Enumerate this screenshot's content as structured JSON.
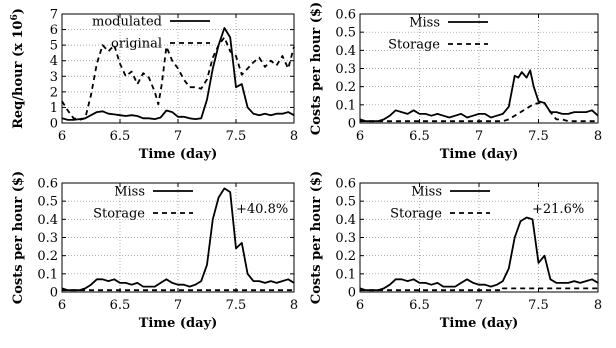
{
  "chart_data": [
    {
      "type": "line",
      "xlabel": "Time (day)",
      "ylabel": "Req/hour (x 10^6)",
      "ylabel_main": "Req/hour (x 10",
      "ylabel_exp": "6",
      "ylabel_close": ")",
      "xlim": [
        6,
        8
      ],
      "ylim": [
        0,
        7
      ],
      "xticks": [
        "6",
        "6.5",
        "7",
        "7.5",
        "8"
      ],
      "yticks": [
        "0",
        "1",
        "2",
        "3",
        "4",
        "5",
        "6",
        "7"
      ],
      "ytick_values": [
        0,
        1,
        2,
        3,
        4,
        5,
        6,
        7
      ],
      "grid": true,
      "legend": "top-right",
      "annotation": "",
      "series": [
        {
          "name": "modulated",
          "style": "solid",
          "x": [
            6.0,
            6.05,
            6.1,
            6.15,
            6.2,
            6.25,
            6.3,
            6.35,
            6.4,
            6.45,
            6.5,
            6.55,
            6.6,
            6.65,
            6.7,
            6.75,
            6.8,
            6.85,
            6.9,
            6.95,
            7.0,
            7.05,
            7.1,
            7.15,
            7.2,
            7.25,
            7.3,
            7.35,
            7.4,
            7.45,
            7.5,
            7.55,
            7.6,
            7.65,
            7.7,
            7.75,
            7.8,
            7.85,
            7.9,
            7.95,
            8.0
          ],
          "values": [
            0.3,
            0.2,
            0.2,
            0.25,
            0.3,
            0.5,
            0.7,
            0.75,
            0.6,
            0.55,
            0.5,
            0.45,
            0.5,
            0.45,
            0.3,
            0.3,
            0.25,
            0.35,
            0.8,
            0.7,
            0.4,
            0.4,
            0.3,
            0.25,
            0.3,
            1.5,
            3.5,
            5.0,
            6.1,
            5.5,
            2.3,
            2.5,
            1.0,
            0.6,
            0.5,
            0.6,
            0.5,
            0.6,
            0.6,
            0.7,
            0.5
          ]
        },
        {
          "name": "original",
          "style": "dashed",
          "x": [
            6.0,
            6.05,
            6.1,
            6.15,
            6.2,
            6.25,
            6.3,
            6.35,
            6.4,
            6.45,
            6.5,
            6.55,
            6.6,
            6.65,
            6.7,
            6.75,
            6.8,
            6.83,
            6.86,
            6.9,
            6.95,
            7.0,
            7.05,
            7.1,
            7.15,
            7.2,
            7.25,
            7.3,
            7.35,
            7.4,
            7.45,
            7.5,
            7.55,
            7.6,
            7.65,
            7.7,
            7.75,
            7.8,
            7.85,
            7.9,
            7.95,
            8.0
          ],
          "values": [
            1.4,
            0.8,
            0.3,
            0.2,
            0.3,
            1.8,
            3.8,
            5.0,
            4.6,
            5.0,
            3.8,
            3.0,
            3.3,
            2.5,
            3.2,
            2.9,
            2.0,
            1.2,
            2.5,
            4.9,
            4.0,
            3.5,
            2.8,
            2.3,
            2.3,
            2.2,
            2.8,
            4.2,
            5.0,
            5.5,
            4.6,
            4.3,
            3.1,
            3.5,
            3.9,
            4.2,
            3.6,
            4.0,
            3.7,
            4.3,
            3.5,
            4.9
          ]
        }
      ]
    },
    {
      "type": "line",
      "xlabel": "Time (day)",
      "ylabel": "Costs per hour ($)",
      "xlim": [
        6,
        8
      ],
      "ylim": [
        0,
        0.6
      ],
      "xticks": [
        "6",
        "6.5",
        "7",
        "7.5",
        "8"
      ],
      "yticks": [
        "0",
        "0.1",
        "0.2",
        "0.3",
        "0.4",
        "0.5",
        "0.6"
      ],
      "ytick_values": [
        0,
        0.1,
        0.2,
        0.3,
        0.4,
        0.5,
        0.6
      ],
      "grid": true,
      "legend": "top-left",
      "annotation": "",
      "series": [
        {
          "name": "Miss",
          "style": "solid",
          "x": [
            6.0,
            6.05,
            6.1,
            6.15,
            6.2,
            6.25,
            6.3,
            6.35,
            6.4,
            6.45,
            6.5,
            6.55,
            6.6,
            6.65,
            6.7,
            6.75,
            6.8,
            6.85,
            6.9,
            6.95,
            7.0,
            7.05,
            7.1,
            7.15,
            7.2,
            7.25,
            7.3,
            7.33,
            7.36,
            7.4,
            7.43,
            7.46,
            7.5,
            7.55,
            7.6,
            7.65,
            7.7,
            7.75,
            7.8,
            7.85,
            7.9,
            7.95,
            8.0
          ],
          "values": [
            0.02,
            0.01,
            0.01,
            0.01,
            0.02,
            0.04,
            0.07,
            0.06,
            0.05,
            0.07,
            0.05,
            0.05,
            0.04,
            0.05,
            0.04,
            0.03,
            0.04,
            0.05,
            0.03,
            0.04,
            0.05,
            0.05,
            0.03,
            0.04,
            0.05,
            0.09,
            0.26,
            0.25,
            0.28,
            0.25,
            0.29,
            0.2,
            0.12,
            0.11,
            0.06,
            0.06,
            0.05,
            0.05,
            0.06,
            0.06,
            0.06,
            0.07,
            0.04
          ]
        },
        {
          "name": "Storage",
          "style": "dashed",
          "x": [
            6.0,
            6.05,
            6.1,
            6.15,
            6.2,
            6.25,
            6.3,
            6.35,
            6.4,
            6.45,
            6.5,
            6.55,
            6.6,
            6.65,
            6.7,
            6.75,
            6.8,
            6.85,
            6.9,
            6.95,
            7.0,
            7.05,
            7.1,
            7.15,
            7.2,
            7.25,
            7.3,
            7.35,
            7.4,
            7.45,
            7.5,
            7.55,
            7.6,
            7.65,
            7.7,
            7.75,
            7.8,
            7.85,
            7.9,
            7.95,
            8.0
          ],
          "values": [
            0.01,
            0.01,
            0.01,
            0.01,
            0.01,
            0.01,
            0.01,
            0.01,
            0.01,
            0.01,
            0.01,
            0.01,
            0.01,
            0.01,
            0.01,
            0.01,
            0.01,
            0.01,
            0.01,
            0.01,
            0.01,
            0.01,
            0.01,
            0.01,
            0.01,
            0.02,
            0.04,
            0.06,
            0.08,
            0.1,
            0.11,
            0.11,
            0.06,
            0.02,
            0.02,
            0.01,
            0.01,
            0.01,
            0.01,
            0.01,
            0.01
          ]
        }
      ]
    },
    {
      "type": "line",
      "xlabel": "Time (day)",
      "ylabel": "Costs per hour ($)",
      "xlim": [
        6,
        8
      ],
      "ylim": [
        0,
        0.6
      ],
      "xticks": [
        "6",
        "6.5",
        "7",
        "7.5",
        "8"
      ],
      "yticks": [
        "0",
        "0.1",
        "0.2",
        "0.3",
        "0.4",
        "0.5",
        "0.6"
      ],
      "ytick_values": [
        0,
        0.1,
        0.2,
        0.3,
        0.4,
        0.5,
        0.6
      ],
      "grid": true,
      "legend": "top-left",
      "annotation": "+40.8%",
      "series": [
        {
          "name": "Miss",
          "style": "solid",
          "x": [
            6.0,
            6.05,
            6.1,
            6.15,
            6.2,
            6.25,
            6.3,
            6.35,
            6.4,
            6.45,
            6.5,
            6.55,
            6.6,
            6.65,
            6.7,
            6.75,
            6.8,
            6.85,
            6.9,
            6.95,
            7.0,
            7.05,
            7.1,
            7.15,
            7.2,
            7.25,
            7.3,
            7.35,
            7.4,
            7.45,
            7.5,
            7.55,
            7.6,
            7.65,
            7.7,
            7.75,
            7.8,
            7.85,
            7.9,
            7.95,
            8.0
          ],
          "values": [
            0.02,
            0.01,
            0.01,
            0.01,
            0.02,
            0.04,
            0.07,
            0.07,
            0.06,
            0.07,
            0.05,
            0.05,
            0.04,
            0.05,
            0.03,
            0.03,
            0.03,
            0.05,
            0.07,
            0.05,
            0.04,
            0.04,
            0.03,
            0.04,
            0.06,
            0.15,
            0.4,
            0.52,
            0.57,
            0.55,
            0.24,
            0.27,
            0.1,
            0.06,
            0.06,
            0.05,
            0.06,
            0.05,
            0.06,
            0.07,
            0.05
          ]
        },
        {
          "name": "Storage",
          "style": "dashed",
          "x": [
            6.0,
            8.0
          ],
          "values": [
            0.01,
            0.01
          ]
        }
      ]
    },
    {
      "type": "line",
      "xlabel": "Time (day)",
      "ylabel": "Costs per hour ($)",
      "xlim": [
        6,
        8
      ],
      "ylim": [
        0,
        0.6
      ],
      "xticks": [
        "6",
        "6.5",
        "7",
        "7.5",
        "8"
      ],
      "yticks": [
        "0",
        "0.1",
        "0.2",
        "0.3",
        "0.4",
        "0.5",
        "0.6"
      ],
      "ytick_values": [
        0,
        0.1,
        0.2,
        0.3,
        0.4,
        0.5,
        0.6
      ],
      "grid": true,
      "legend": "top-left",
      "annotation": "+21.6%",
      "series": [
        {
          "name": "Miss",
          "style": "solid",
          "x": [
            6.0,
            6.05,
            6.1,
            6.15,
            6.2,
            6.25,
            6.3,
            6.35,
            6.4,
            6.45,
            6.5,
            6.55,
            6.6,
            6.65,
            6.7,
            6.75,
            6.8,
            6.85,
            6.9,
            6.95,
            7.0,
            7.05,
            7.1,
            7.15,
            7.2,
            7.25,
            7.3,
            7.35,
            7.4,
            7.45,
            7.5,
            7.55,
            7.6,
            7.65,
            7.7,
            7.75,
            7.8,
            7.85,
            7.9,
            7.95,
            8.0
          ],
          "values": [
            0.02,
            0.01,
            0.01,
            0.01,
            0.02,
            0.04,
            0.07,
            0.07,
            0.06,
            0.07,
            0.05,
            0.05,
            0.04,
            0.05,
            0.03,
            0.03,
            0.03,
            0.05,
            0.07,
            0.05,
            0.04,
            0.04,
            0.03,
            0.04,
            0.06,
            0.13,
            0.3,
            0.39,
            0.41,
            0.4,
            0.16,
            0.2,
            0.07,
            0.05,
            0.05,
            0.05,
            0.06,
            0.05,
            0.06,
            0.07,
            0.05
          ]
        },
        {
          "name": "Storage",
          "style": "dashed",
          "x": [
            6.0,
            7.2,
            7.2,
            8.0
          ],
          "values": [
            0.01,
            0.01,
            0.02,
            0.02
          ]
        }
      ]
    }
  ]
}
